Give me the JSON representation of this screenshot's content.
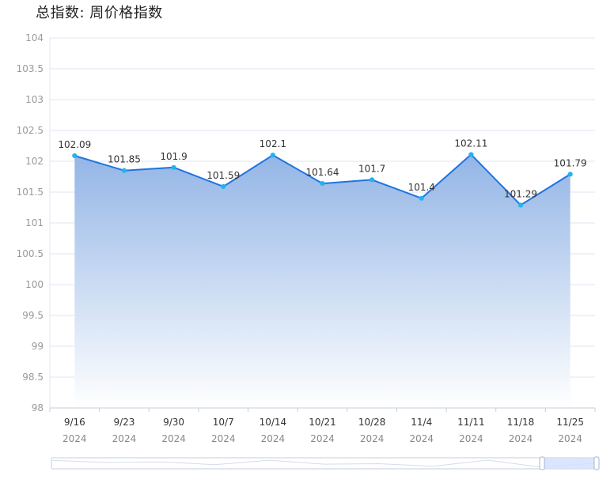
{
  "chart_data": {
    "type": "area",
    "title": "总指数: 周价格指数",
    "xlabel": "",
    "ylabel": "",
    "categories": [
      "9/16",
      "9/23",
      "9/30",
      "10/7",
      "10/14",
      "10/21",
      "10/28",
      "11/4",
      "11/11",
      "11/18",
      "11/25"
    ],
    "category_sublabels": [
      "2024",
      "2024",
      "2024",
      "2024",
      "2024",
      "2024",
      "2024",
      "2024",
      "2024",
      "2024",
      "2024"
    ],
    "values": [
      102.09,
      101.85,
      101.9,
      101.59,
      102.1,
      101.64,
      101.7,
      101.4,
      102.11,
      101.29,
      101.79
    ],
    "value_labels": [
      "102.09",
      "101.85",
      "101.9",
      "101.59",
      "102.1",
      "101.64",
      "101.7",
      "101.4",
      "102.11",
      "101.29",
      "101.79"
    ],
    "ylim": [
      98,
      104
    ],
    "yticks": [
      "98",
      "98.5",
      "99",
      "99.5",
      "100",
      "100.5",
      "101",
      "101.5",
      "102",
      "102.5",
      "103",
      "103.5",
      "104"
    ],
    "grid": true,
    "legend": "none",
    "data_zoom": {
      "start": 0.9,
      "end": 1.0
    },
    "colors": {
      "line": "#1f74e0",
      "point": "#23b3ee",
      "area_top": "#93b5e6",
      "area_bottom": "#ffffff",
      "grid": "#e0e6f1",
      "zoom_fill": "#d2e0fb",
      "zoom_border": "#c6cde0"
    }
  }
}
